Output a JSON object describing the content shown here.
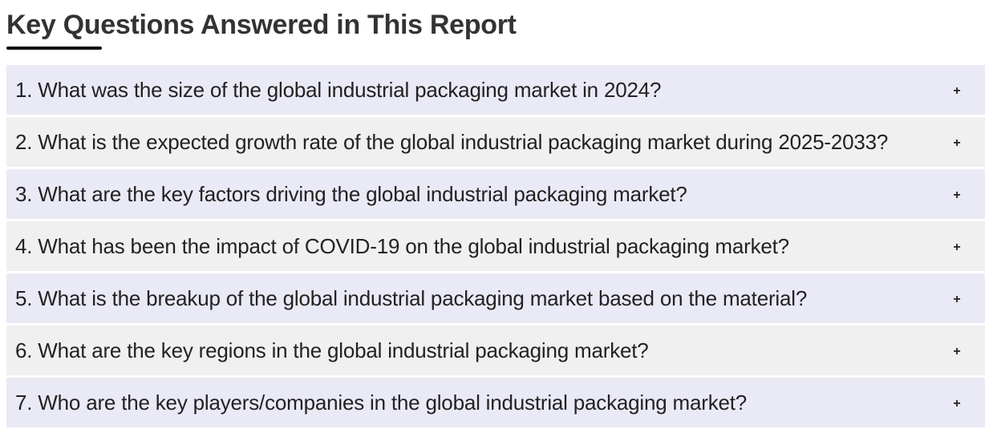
{
  "section": {
    "title": "Key Questions Answered in This Report"
  },
  "icons": {
    "expand": "plus-icon"
  },
  "faq": [
    {
      "question": "1. What was the size of the global industrial packaging market in 2024?",
      "toggle": "+"
    },
    {
      "question": "2. What is the expected growth rate of the global industrial packaging market during 2025-2033?",
      "toggle": "+"
    },
    {
      "question": "3. What are the key factors driving the global industrial packaging market?",
      "toggle": "+"
    },
    {
      "question": "4. What has been the impact of COVID-19 on the global industrial packaging market?",
      "toggle": "+"
    },
    {
      "question": "5. What is the breakup of the global industrial packaging market based on the material?",
      "toggle": "+"
    },
    {
      "question": "6. What are the key regions in the global industrial packaging market?",
      "toggle": "+"
    },
    {
      "question": "7. Who are the key players/companies in the global industrial packaging market?",
      "toggle": "+"
    }
  ]
}
